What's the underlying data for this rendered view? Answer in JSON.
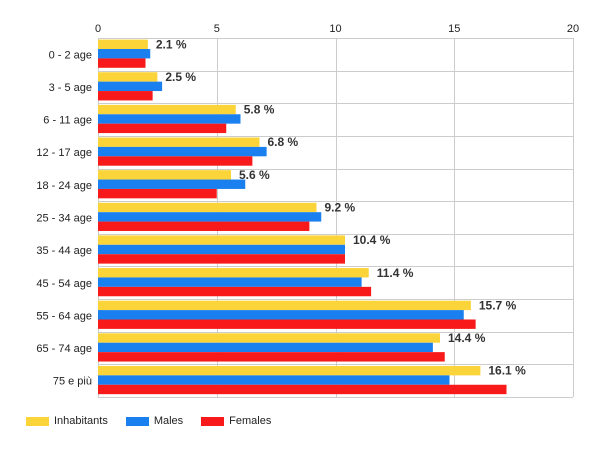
{
  "colors": {
    "inhabitants": "#fbd43a",
    "males": "#1a80f0",
    "females": "#f81a1a",
    "grid": "#cccccc",
    "axis_text": "#222222",
    "label_text": "#333333"
  },
  "chart_data": {
    "type": "bar",
    "orientation": "horizontal",
    "categories": [
      "0 - 2 age",
      "3 - 5 age",
      "6 - 11 age",
      "12 - 17 age",
      "18 - 24 age",
      "25 - 34 age",
      "35 - 44 age",
      "45 - 54 age",
      "55 - 64 age",
      "65 - 74 age",
      "75 e più"
    ],
    "series": [
      {
        "name": "Inhabitants",
        "values": [
          2.1,
          2.5,
          5.8,
          6.8,
          5.6,
          9.2,
          10.4,
          11.4,
          15.7,
          14.4,
          16.1
        ]
      },
      {
        "name": "Males",
        "values": [
          2.2,
          2.7,
          6.0,
          7.1,
          6.2,
          9.4,
          10.4,
          11.1,
          15.4,
          14.1,
          14.8
        ]
      },
      {
        "name": "Females",
        "values": [
          2.0,
          2.3,
          5.4,
          6.5,
          5.0,
          8.9,
          10.4,
          11.5,
          15.9,
          14.6,
          17.2
        ]
      }
    ],
    "data_labels": [
      "2.1 %",
      "2.5 %",
      "5.8 %",
      "6.8 %",
      "5.6 %",
      "9.2 %",
      "10.4 %",
      "11.4 %",
      "15.7 %",
      "14.4 %",
      "16.1 %"
    ],
    "x_ticks": [
      "0",
      "5",
      "10",
      "15",
      "20"
    ],
    "xlim": [
      0,
      20
    ],
    "grid": true,
    "legend_position": "bottom-left",
    "title": "",
    "xlabel": "",
    "ylabel": ""
  }
}
